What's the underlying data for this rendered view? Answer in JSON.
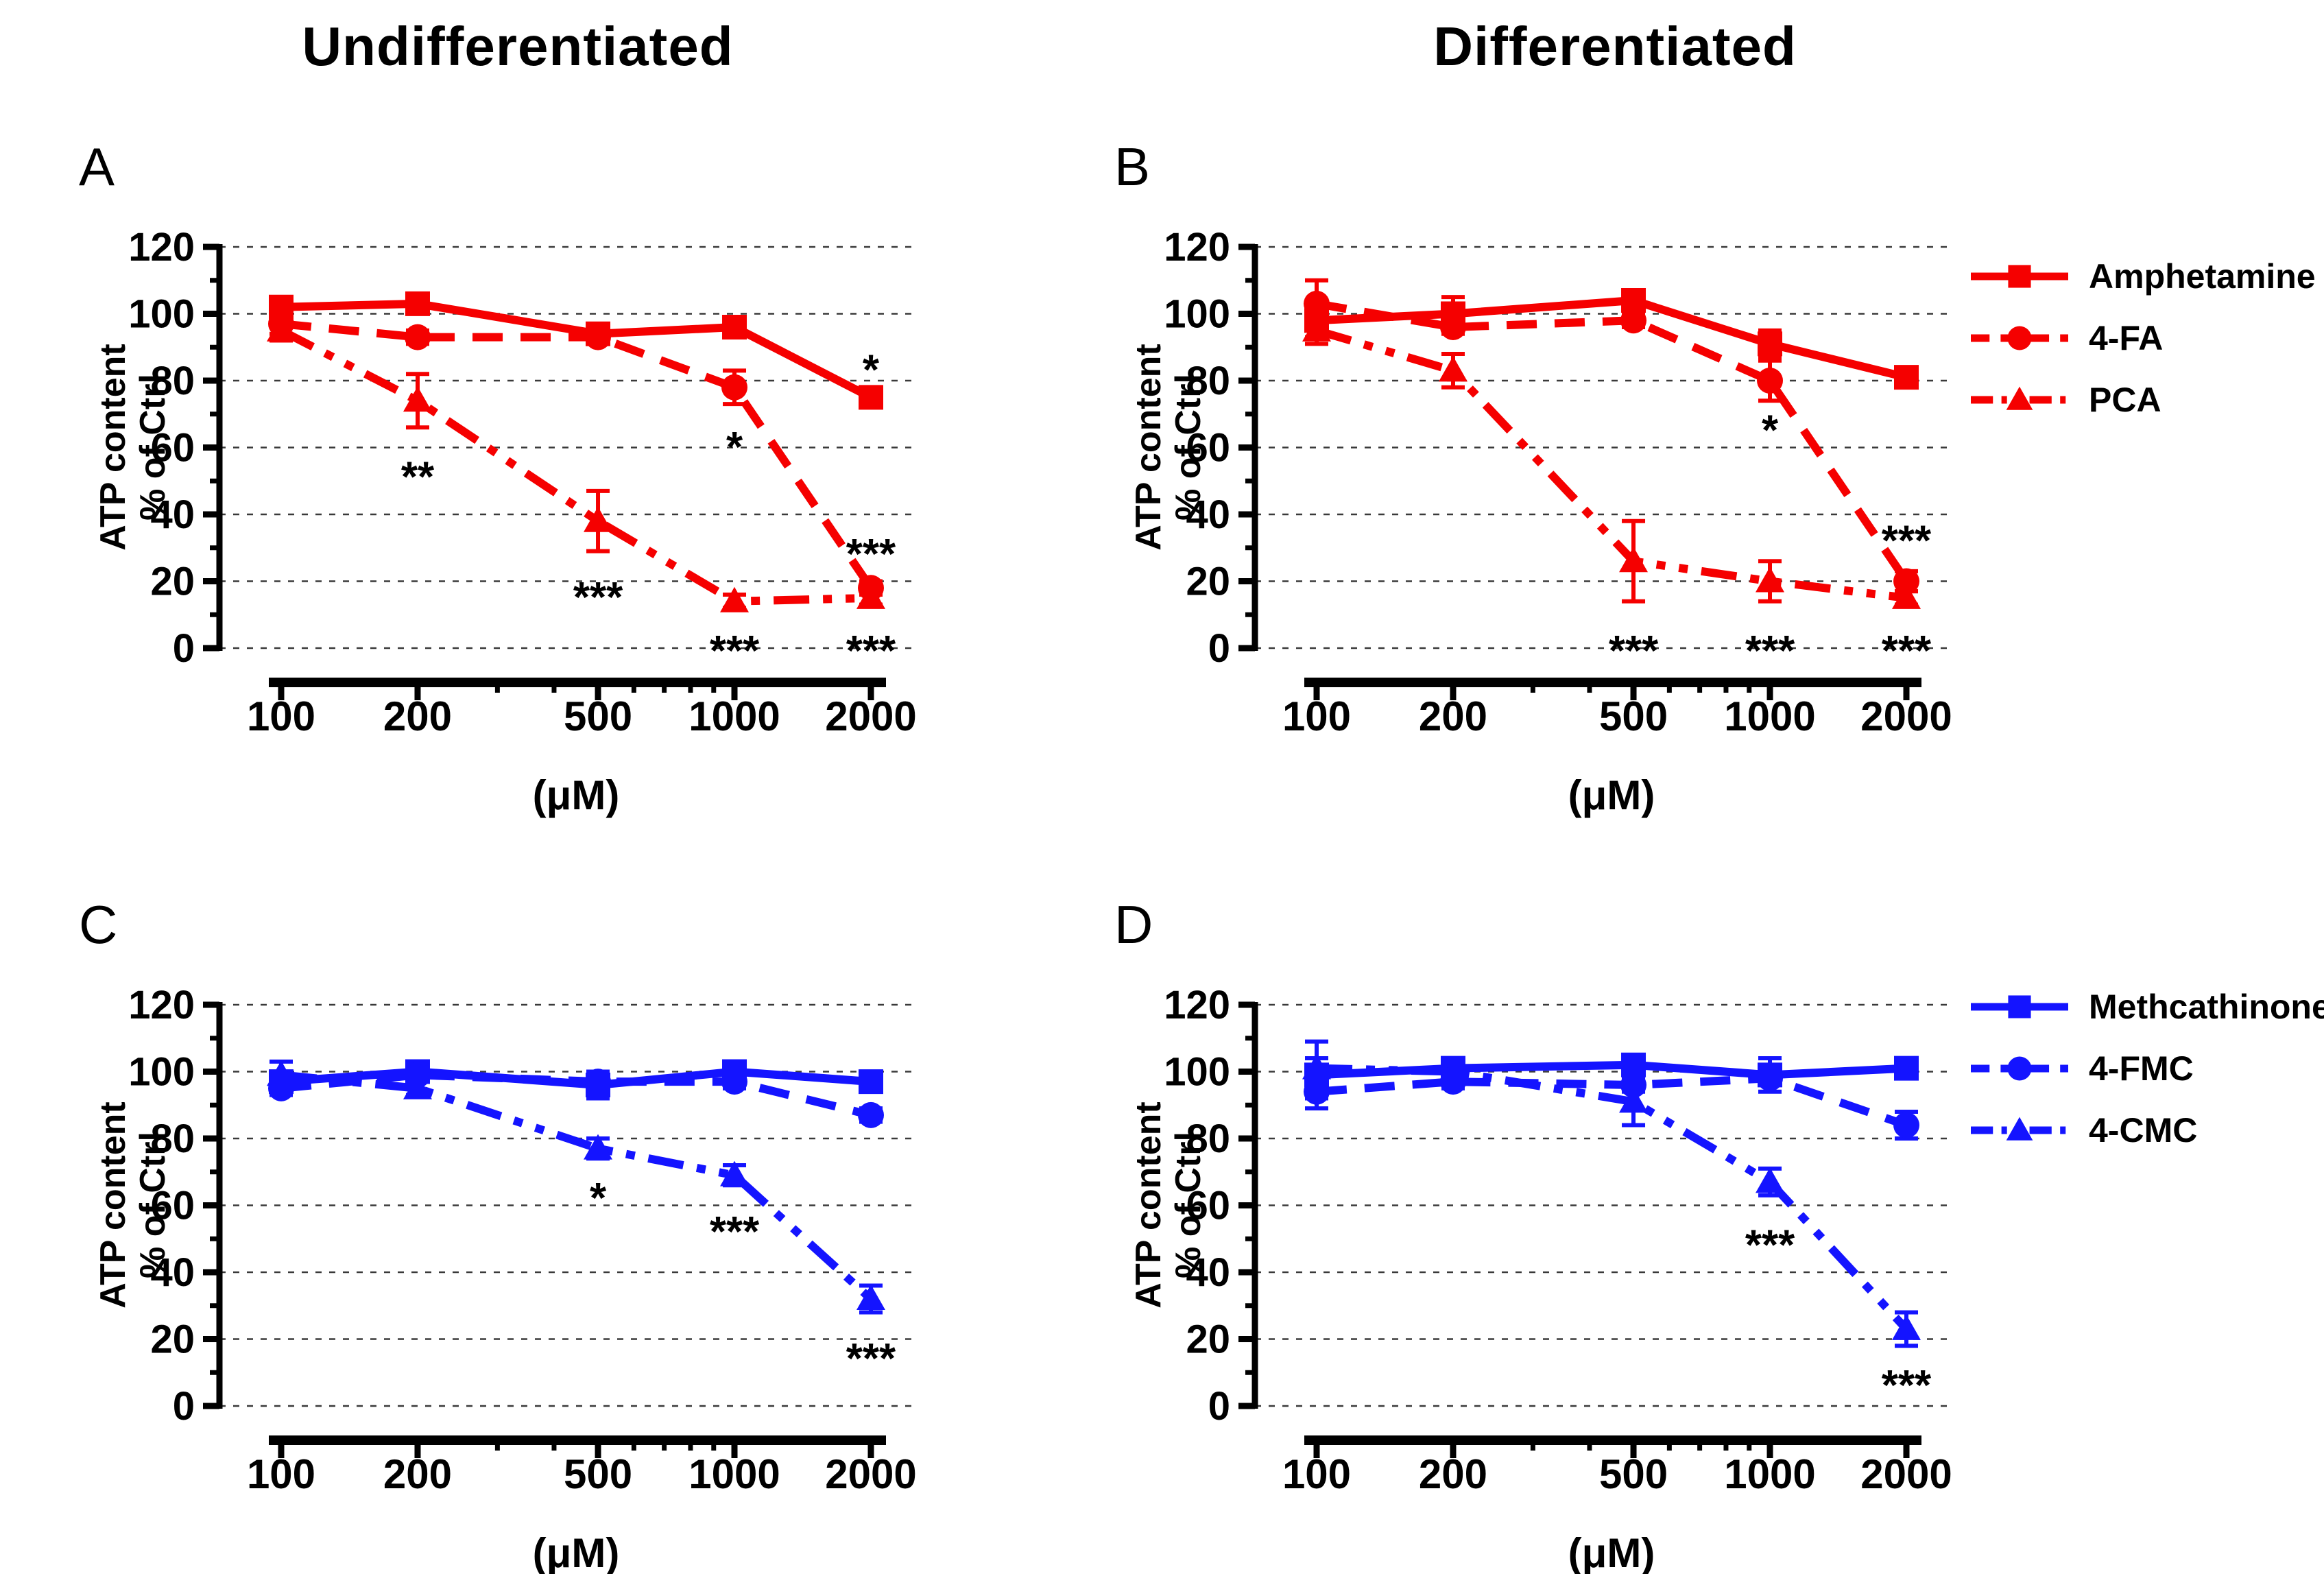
{
  "titles": {
    "left": "Undifferentiated",
    "right": "Differentiated"
  },
  "colors": {
    "red": "#f50000",
    "blue": "#1414ff",
    "annotation": "#000000"
  },
  "axes": {
    "x_label": "(μM)",
    "y_label_line1": "ATP content",
    "y_label_line2": "% of Ctrl",
    "x_ticks": [
      100,
      200,
      500,
      1000,
      2000
    ],
    "x_minor_ticks": [
      300,
      400,
      600,
      700,
      800,
      900
    ],
    "y_ticks": [
      0,
      20,
      40,
      60,
      80,
      100,
      120
    ],
    "y_minor_ticks": [
      10,
      30,
      50,
      70,
      90,
      110
    ],
    "xlim": [
      100,
      2000
    ],
    "ylim": [
      0,
      120
    ],
    "xscale": "log",
    "grid": "dashed horizontal at each major y tick"
  },
  "chart_data": [
    {
      "panel_label": "A",
      "column": "Undifferentiated",
      "type": "line",
      "color": "#f50000",
      "x": [
        100,
        200,
        500,
        1000,
        2000
      ],
      "xlabel": "(μM)",
      "ylabel": "ATP content % of Ctrl",
      "ylim": [
        0,
        120
      ],
      "series": [
        {
          "name": "Amphetamine",
          "marker": "square",
          "linestyle": "solid",
          "values": [
            102,
            103,
            94,
            96,
            75
          ],
          "errors": [
            3,
            2,
            3,
            2,
            3
          ]
        },
        {
          "name": "4-FA",
          "marker": "circle",
          "linestyle": "dashed",
          "values": [
            97,
            93,
            93,
            78,
            18
          ],
          "errors": [
            3,
            2,
            2,
            5,
            2
          ]
        },
        {
          "name": "PCA",
          "marker": "triangle",
          "linestyle": "dashdotdot",
          "values": [
            95,
            74,
            38,
            14,
            15
          ],
          "errors": [
            3,
            8,
            9,
            2,
            2
          ]
        }
      ],
      "annotations": [
        {
          "x": 200,
          "y": 53,
          "text": "**"
        },
        {
          "x": 500,
          "y": 17,
          "text": "***"
        },
        {
          "x": 1000,
          "y": 62,
          "text": "*"
        },
        {
          "x": 1000,
          "y": 1,
          "text": "***"
        },
        {
          "x": 2000,
          "y": 85,
          "text": "*"
        },
        {
          "x": 2000,
          "y": 30,
          "text": "***"
        },
        {
          "x": 2000,
          "y": 1,
          "text": "***"
        }
      ]
    },
    {
      "panel_label": "B",
      "column": "Differentiated",
      "type": "line",
      "color": "#f50000",
      "x": [
        100,
        200,
        500,
        1000,
        2000
      ],
      "xlabel": "(μM)",
      "ylabel": "ATP content % of Ctrl",
      "ylim": [
        0,
        120
      ],
      "series": [
        {
          "name": "Amphetamine",
          "marker": "square",
          "linestyle": "solid",
          "values": [
            98,
            100,
            104,
            91,
            81
          ],
          "errors": [
            5,
            5,
            2,
            4,
            3
          ]
        },
        {
          "name": "4-FA",
          "marker": "circle",
          "linestyle": "dashed",
          "values": [
            103,
            96,
            98,
            80,
            20
          ],
          "errors": [
            7,
            2,
            2,
            6,
            3
          ]
        },
        {
          "name": "PCA",
          "marker": "triangle",
          "linestyle": "dashdotdot",
          "values": [
            95,
            83,
            26,
            20,
            15
          ],
          "errors": [
            4,
            5,
            12,
            6,
            2
          ]
        }
      ],
      "annotations": [
        {
          "x": 1000,
          "y": 67,
          "text": "*"
        },
        {
          "x": 2000,
          "y": 34,
          "text": "***"
        },
        {
          "x": 500,
          "y": 1,
          "text": "***"
        },
        {
          "x": 1000,
          "y": 1,
          "text": "***"
        },
        {
          "x": 2000,
          "y": 1,
          "text": "***"
        }
      ]
    },
    {
      "panel_label": "C",
      "column": "Undifferentiated",
      "type": "line",
      "color": "#1414ff",
      "x": [
        100,
        200,
        500,
        1000,
        2000
      ],
      "xlabel": "(μM)",
      "ylabel": "ATP content % of Ctrl",
      "ylim": [
        0,
        120
      ],
      "series": [
        {
          "name": "Methcathinone",
          "marker": "square",
          "linestyle": "solid",
          "values": [
            97,
            100,
            96,
            100,
            97
          ],
          "errors": [
            3,
            3,
            4,
            3,
            2
          ]
        },
        {
          "name": "4-FMC",
          "marker": "circle",
          "linestyle": "dashed",
          "values": [
            95,
            99,
            97,
            97,
            87
          ],
          "errors": [
            2,
            2,
            2,
            2,
            2
          ]
        },
        {
          "name": "4-CMC",
          "marker": "triangle",
          "linestyle": "dashdotdot",
          "values": [
            99,
            95,
            77,
            69,
            32
          ],
          "errors": [
            4,
            2,
            3,
            3,
            4
          ]
        }
      ],
      "annotations": [
        {
          "x": 500,
          "y": 64,
          "text": "*"
        },
        {
          "x": 1000,
          "y": 54,
          "text": "***"
        },
        {
          "x": 2000,
          "y": 16,
          "text": "***"
        }
      ]
    },
    {
      "panel_label": "D",
      "column": "Differentiated",
      "type": "line",
      "color": "#1414ff",
      "x": [
        100,
        200,
        500,
        1000,
        2000
      ],
      "xlabel": "(μM)",
      "ylabel": "ATP content % of Ctrl",
      "ylim": [
        0,
        120
      ],
      "series": [
        {
          "name": "Methcathinone",
          "marker": "square",
          "linestyle": "solid",
          "values": [
            99,
            101,
            102,
            99,
            101
          ],
          "errors": [
            10,
            3,
            3,
            5,
            3
          ]
        },
        {
          "name": "4-FMC",
          "marker": "circle",
          "linestyle": "dashed",
          "values": [
            94,
            97,
            96,
            98,
            84
          ],
          "errors": [
            2,
            2,
            2,
            2,
            4
          ]
        },
        {
          "name": "4-CMC",
          "marker": "triangle",
          "linestyle": "dashdotdot",
          "values": [
            101,
            100,
            91,
            67,
            23
          ],
          "errors": [
            3,
            2,
            7,
            4,
            5
          ]
        }
      ],
      "annotations": [
        {
          "x": 1000,
          "y": 50,
          "text": "***"
        },
        {
          "x": 2000,
          "y": 8,
          "text": "***"
        }
      ]
    }
  ],
  "legends": {
    "top": [
      {
        "label": "Amphetamine",
        "marker": "square",
        "linestyle": "solid",
        "color": "#f50000"
      },
      {
        "label": "4-FA",
        "marker": "circle",
        "linestyle": "dashed",
        "color": "#f50000"
      },
      {
        "label": "PCA",
        "marker": "triangle",
        "linestyle": "dashdotdot",
        "color": "#f50000"
      }
    ],
    "bottom": [
      {
        "label": "Methcathinone",
        "marker": "square",
        "linestyle": "solid",
        "color": "#1414ff"
      },
      {
        "label": "4-FMC",
        "marker": "circle",
        "linestyle": "dashed",
        "color": "#1414ff"
      },
      {
        "label": "4-CMC",
        "marker": "triangle",
        "linestyle": "dashdotdot",
        "color": "#1414ff"
      }
    ]
  }
}
